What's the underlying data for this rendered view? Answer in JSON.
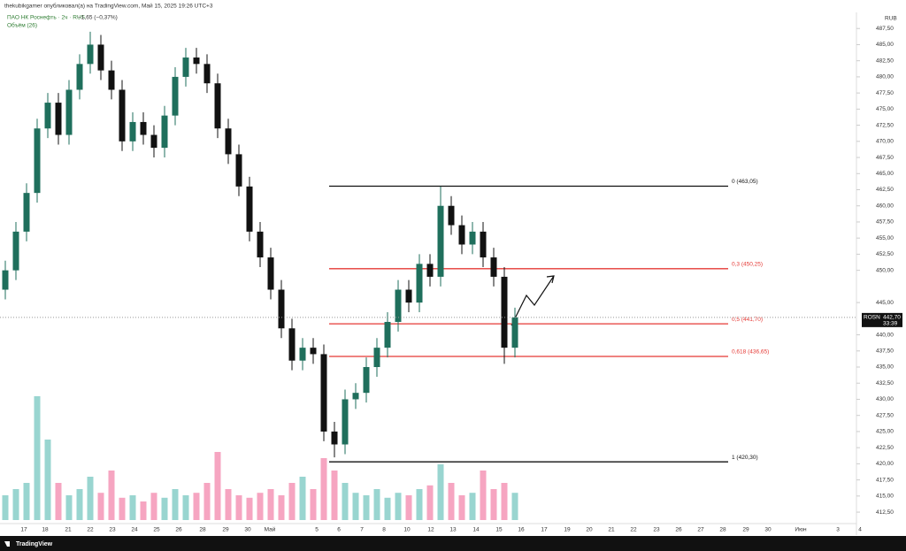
{
  "chart_data": {
    "type": "candlestick",
    "header": "thekubikgamer опубликовал(а) на TradingView.com, Май 15, 2025 19:26 UTC+3",
    "symbol": "ПАО НК Роснефть · 2ч · RUS",
    "change": "−1,65 (−0,37%)",
    "volume_label": "Объём (26)",
    "currency": "RUB",
    "last": {
      "ticker": "ROSN",
      "value": 442.7,
      "label": "442,70",
      "timer": "33:39"
    },
    "footer": "TradingView",
    "up_color": "#1f6f5c",
    "down_color": "#111111",
    "open": [
      447,
      450,
      456,
      462,
      472,
      476,
      471,
      478,
      482,
      485,
      481,
      478,
      470,
      473,
      471,
      469,
      474,
      480,
      483,
      482,
      479,
      472,
      468,
      463,
      456,
      452,
      447,
      441,
      436,
      438,
      437,
      425,
      423,
      430,
      431,
      435,
      438,
      442,
      447,
      445,
      451,
      449,
      460,
      457,
      454,
      456,
      452,
      449,
      438
    ],
    "high": [
      451.5,
      457.5,
      463.5,
      473.5,
      477.5,
      477.5,
      479.5,
      483.5,
      487,
      486.5,
      482.5,
      479.5,
      474.5,
      474.5,
      472.5,
      475.5,
      481.5,
      484.5,
      484.5,
      483.5,
      480.5,
      473.5,
      469.5,
      464.5,
      457.5,
      453.5,
      448.5,
      442.5,
      439.5,
      439.5,
      438.5,
      426.5,
      431.5,
      432.5,
      436.5,
      439.5,
      443.5,
      448.5,
      448.5,
      452.5,
      452.5,
      463,
      461.5,
      458.5,
      457.5,
      457.5,
      453.5,
      450.5,
      444.2
    ],
    "low": [
      445.5,
      448.5,
      454.5,
      460.5,
      470.5,
      469.5,
      469.5,
      476.5,
      480.5,
      479.5,
      476.5,
      468.5,
      468.5,
      469.5,
      467.5,
      467.5,
      472.5,
      478.5,
      480.5,
      477.5,
      470.5,
      466.5,
      461.5,
      454.5,
      450.5,
      445.5,
      439.5,
      434.5,
      434.5,
      435.5,
      423.5,
      421,
      421.5,
      428.5,
      429.5,
      433.5,
      436.5,
      440.5,
      443.5,
      443.5,
      447.5,
      447.5,
      455.5,
      452.5,
      452.5,
      450.5,
      447.5,
      435.5,
      436.5
    ],
    "close": [
      450,
      456,
      462,
      472,
      476,
      471,
      478,
      482,
      485,
      481,
      478,
      470,
      473,
      471,
      469,
      474,
      480,
      483,
      482,
      479,
      472,
      468,
      463,
      456,
      452,
      447,
      441,
      436,
      438,
      437,
      425,
      423,
      430,
      431,
      435,
      438,
      442,
      447,
      445,
      451,
      449,
      460,
      457,
      454,
      456,
      452,
      449,
      438,
      442.7
    ],
    "volume": [
      20,
      25,
      30,
      100,
      65,
      30,
      20,
      25,
      35,
      22,
      40,
      18,
      20,
      15,
      22,
      18,
      25,
      20,
      22,
      30,
      55,
      25,
      20,
      18,
      22,
      25,
      20,
      30,
      35,
      25,
      50,
      40,
      30,
      22,
      20,
      25,
      18,
      22,
      20,
      25,
      28,
      45,
      30,
      20,
      22,
      40,
      25,
      30,
      22
    ],
    "ylim": [
      411,
      490
    ],
    "yticks": [
      {
        "value": 487.5,
        "label": "487,50"
      },
      {
        "value": 485,
        "label": "485,00"
      },
      {
        "value": 482.5,
        "label": "482,50"
      },
      {
        "value": 480,
        "label": "480,00"
      },
      {
        "value": 477.5,
        "label": "477,50"
      },
      {
        "value": 475,
        "label": "475,00"
      },
      {
        "value": 472.5,
        "label": "472,50"
      },
      {
        "value": 470,
        "label": "470,00"
      },
      {
        "value": 467.5,
        "label": "467,50"
      },
      {
        "value": 465,
        "label": "465,00"
      },
      {
        "value": 462.5,
        "label": "462,50"
      },
      {
        "value": 460,
        "label": "460,00"
      },
      {
        "value": 457.5,
        "label": "457,50"
      },
      {
        "value": 455,
        "label": "455,00"
      },
      {
        "value": 452.5,
        "label": "452,50"
      },
      {
        "value": 450,
        "label": "450,00"
      },
      {
        "value": 445,
        "label": "445,00"
      },
      {
        "value": 440,
        "label": "440,00"
      },
      {
        "value": 437.5,
        "label": "437,50"
      },
      {
        "value": 435,
        "label": "435,00"
      },
      {
        "value": 432.5,
        "label": "432,50"
      },
      {
        "value": 430,
        "label": "430,00"
      },
      {
        "value": 427.5,
        "label": "427,50"
      },
      {
        "value": 425,
        "label": "425,00"
      },
      {
        "value": 422.5,
        "label": "422,50"
      },
      {
        "value": 420,
        "label": "420,00"
      },
      {
        "value": 417.5,
        "label": "417,50"
      },
      {
        "value": 415,
        "label": "415,00"
      },
      {
        "value": 412.5,
        "label": "412,50"
      }
    ],
    "x_labels": [
      "17",
      "18",
      "21",
      "22",
      "23",
      "24",
      "25",
      "26",
      "28",
      "29",
      "30",
      "Май",
      "5",
      "6",
      "7",
      "8",
      "10",
      "12",
      "13",
      "14",
      "15",
      "16",
      "17",
      "19",
      "20",
      "21",
      "22",
      "23",
      "26",
      "27",
      "28",
      "29",
      "30",
      "Июн",
      "3",
      "4"
    ],
    "fib_levels": [
      {
        "value": 463.05,
        "label": "0 (463,05)",
        "color": "#111111"
      },
      {
        "value": 450.25,
        "label": "0,3 (450,25)",
        "color": "#e53935"
      },
      {
        "value": 441.7,
        "label": "0,5 (441,70)",
        "color": "#e53935"
      },
      {
        "value": 436.65,
        "label": "0,618 (436,65)",
        "color": "#e53935"
      },
      {
        "value": 420.3,
        "label": "1 (420,30)",
        "color": "#111111"
      }
    ]
  }
}
